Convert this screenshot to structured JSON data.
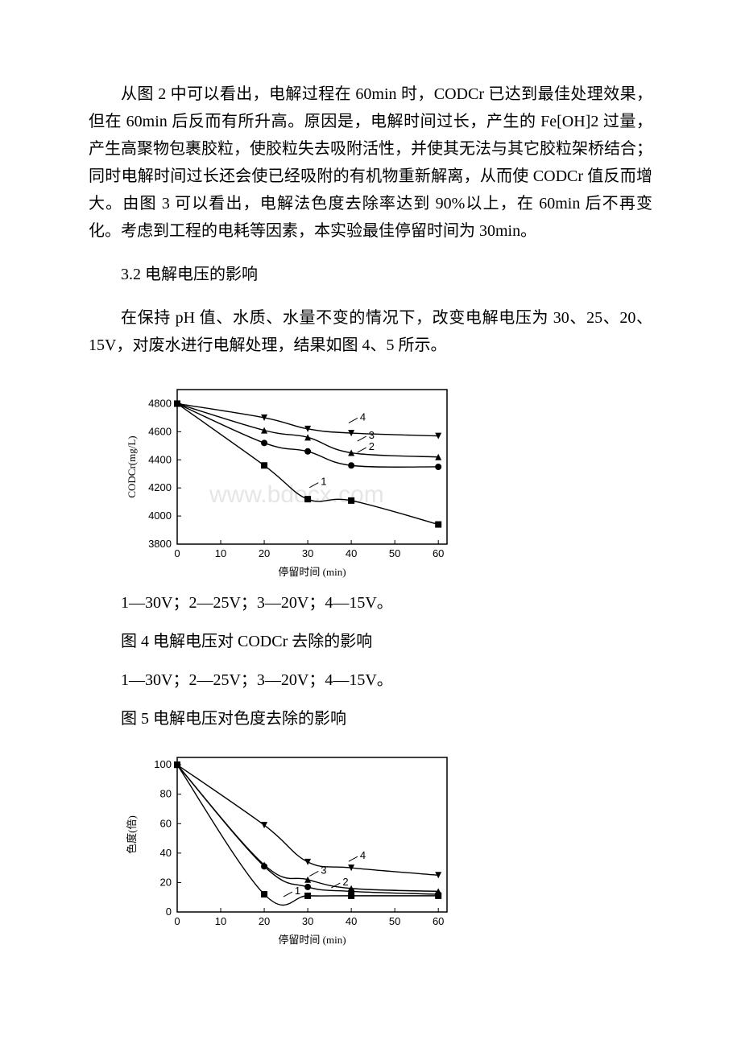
{
  "para1": "从图 2 中可以看出，电解过程在 60min 时，CODCr 已达到最佳处理效果，但在 60min 后反而有所升高。原因是，电解时间过长，产生的 Fe[OH]2 过量，产生高聚物包裹胶粒，使胶粒失去吸附活性，并使其无法与其它胶粒架桥结合；同时电解时间过长还会使已经吸附的有机物重新解离，从而使 CODCr 值反而增大。由图 3 可以看出，电解法色度去除率达到 90%以上，在 60min 后不再变化。考虑到工程的电耗等因素，本实验最佳停留时间为 30min。",
  "section32": "3.2 电解电压的影响",
  "para2": "在保持 pH 值、水质、水量不变的情况下，改变电解电压为 30、25、20、15V，对废水进行电解处理，结果如图 4、5 所示。",
  "legend1": "1—30V；2—25V；3—20V；4—15V。",
  "caption4": "图 4 电解电压对 CODCr 去除的影响",
  "legend2": "1—30V；2—25V；3—20V；4—15V。",
  "caption5": "图 5 电解电压对色度去除的影响",
  "watermark": "www.bdocx.com",
  "chart4": {
    "type": "line",
    "xlabel": "停留时间 (min)",
    "ylabel": "CODCr(mg/L)",
    "xlim": [
      0,
      62
    ],
    "xtick_step": 10,
    "ylim": [
      3800,
      4900
    ],
    "yticks": [
      3800,
      4000,
      4200,
      4400,
      4600,
      4800
    ],
    "x_values": [
      0,
      20,
      30,
      40,
      60
    ],
    "series": [
      {
        "label": "1",
        "marker": "square",
        "y": [
          4800,
          4360,
          4120,
          4110,
          3940
        ]
      },
      {
        "label": "2",
        "marker": "circle",
        "y": [
          4800,
          4520,
          4460,
          4360,
          4350
        ]
      },
      {
        "label": "3",
        "marker": "triangle",
        "y": [
          4800,
          4610,
          4560,
          4450,
          4420
        ]
      },
      {
        "label": "4",
        "marker": "invtri",
        "y": [
          4800,
          4700,
          4620,
          4590,
          4570
        ]
      }
    ],
    "series_labels_xy": [
      {
        "t": "1",
        "x": 33,
        "y": 4220
      },
      {
        "t": "2",
        "x": 44,
        "y": 4470
      },
      {
        "t": "3",
        "x": 44,
        "y": 4550
      },
      {
        "t": "4",
        "x": 42,
        "y": 4680
      }
    ],
    "axis_color": "#000000",
    "line_color": "#000000",
    "marker_fill": "#000000",
    "bg": "#ffffff",
    "font_size_axis": 13,
    "font_size_label": 13,
    "line_width": 1.4
  },
  "chart5": {
    "type": "line",
    "xlabel": "停留时间 (min)",
    "ylabel": "色度(倍)",
    "xlim": [
      0,
      62
    ],
    "xtick_step": 10,
    "ylim": [
      0,
      105
    ],
    "yticks": [
      0,
      20,
      40,
      60,
      80,
      100
    ],
    "x_values": [
      0,
      20,
      30,
      40,
      60
    ],
    "series": [
      {
        "label": "1",
        "marker": "square",
        "y": [
          100,
          12,
          11,
          11,
          11
        ]
      },
      {
        "label": "2",
        "marker": "circle",
        "y": [
          100,
          31,
          17,
          14,
          12
        ]
      },
      {
        "label": "3",
        "marker": "triangle",
        "y": [
          100,
          32,
          22,
          16,
          14
        ]
      },
      {
        "label": "4",
        "marker": "invtri",
        "y": [
          100,
          59,
          34,
          30,
          25
        ]
      }
    ],
    "series_labels_xy": [
      {
        "t": "1",
        "x": 27,
        "y": 12
      },
      {
        "t": "2",
        "x": 38,
        "y": 18
      },
      {
        "t": "3",
        "x": 33,
        "y": 26
      },
      {
        "t": "4",
        "x": 42,
        "y": 36
      }
    ],
    "axis_color": "#000000",
    "line_color": "#000000",
    "marker_fill": "#000000",
    "bg": "#ffffff",
    "font_size_axis": 13,
    "font_size_label": 13,
    "line_width": 1.4
  }
}
